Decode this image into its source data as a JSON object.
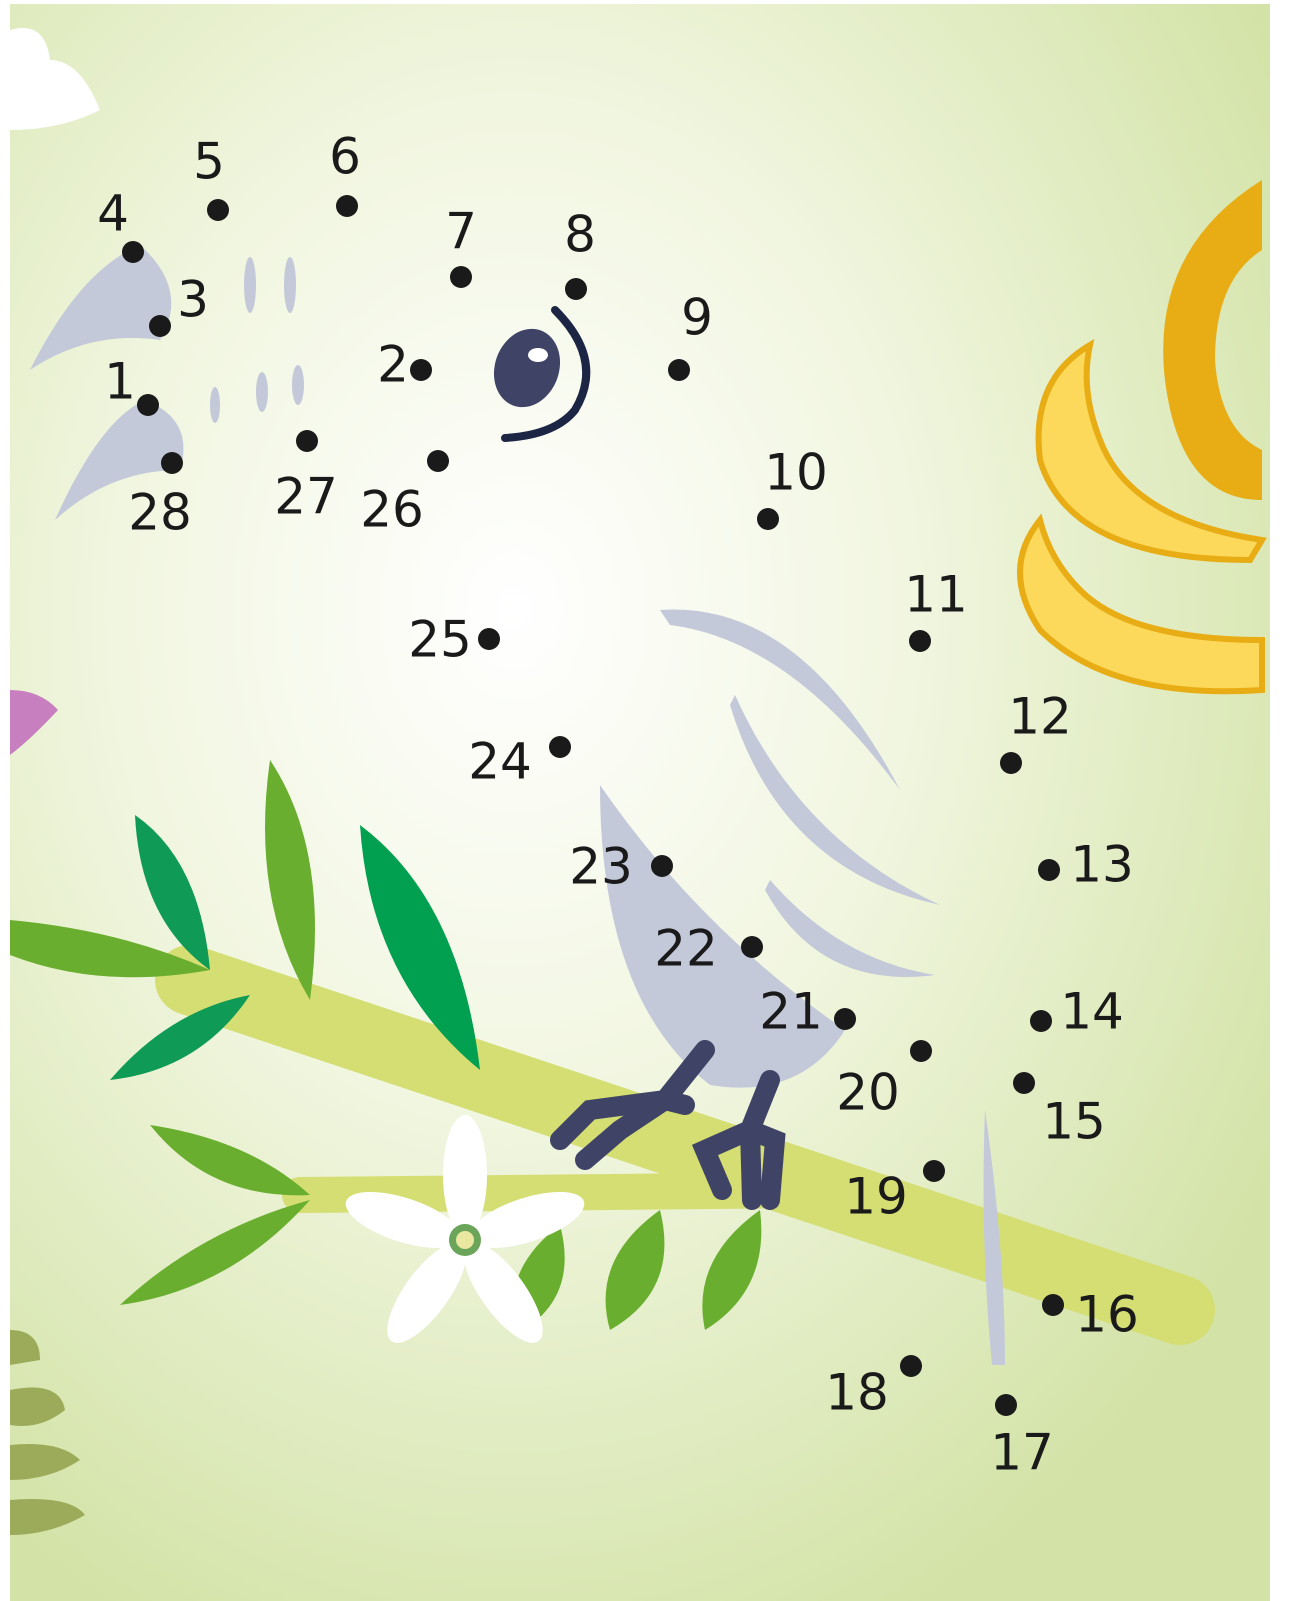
{
  "dots": [
    "1",
    "2",
    "3",
    "4",
    "5",
    "6",
    "7",
    "8",
    "9",
    "10",
    "11",
    "12",
    "13",
    "14",
    "15",
    "16",
    "17",
    "18",
    "19",
    "20",
    "21",
    "22",
    "23",
    "24",
    "25",
    "26",
    "27",
    "28"
  ]
}
